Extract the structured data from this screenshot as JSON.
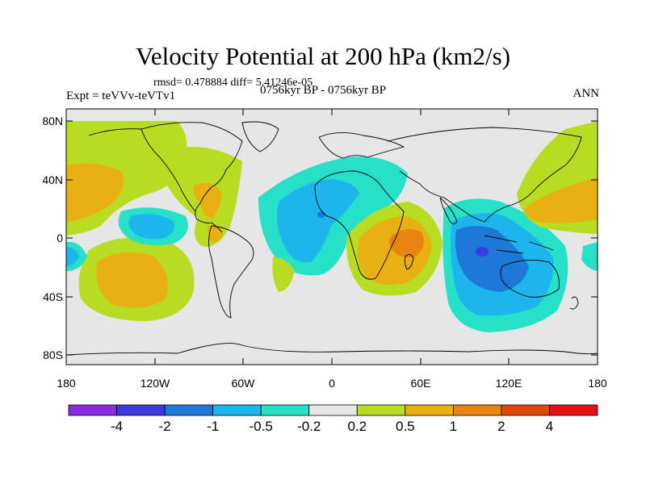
{
  "title": "Velocity Potential at 200 hPa (km2/s)",
  "stats": "rmsd= 0.478884 diff= 5.41246e-05",
  "experiment": "Expt = teVVv-teVTv1",
  "period": "0756kyr BP - 0756kyr BP",
  "season": "ANN",
  "lat_labels": [
    "80N",
    "40N",
    "0",
    "40S",
    "80S"
  ],
  "lon_labels": [
    "180",
    "120W",
    "60W",
    "0",
    "60E",
    "120E",
    "180"
  ],
  "colorbar": {
    "labels": [
      "-4",
      "-2",
      "-1",
      "-0.5",
      "-0.2",
      "0.2",
      "0.5",
      "1",
      "2",
      "4"
    ],
    "colors": [
      "#8a2be2",
      "#3a3ae0",
      "#1e78d8",
      "#1cb6ec",
      "#26e0c8",
      "#e6e6e6",
      "#b8dc22",
      "#e8b010",
      "#e88410",
      "#e04808",
      "#e81010"
    ]
  },
  "map_colors": {
    "land_outline": "#000000",
    "neutral": "#e6e6e6",
    "pos_light": "#b8dc22",
    "pos_mid": "#e8b010",
    "pos_strong": "#e88410",
    "neg_light": "#26e0c8",
    "neg_mid": "#1cb6ec",
    "neg_strong": "#1e78d8",
    "neg_core": "#3a3ae0"
  }
}
